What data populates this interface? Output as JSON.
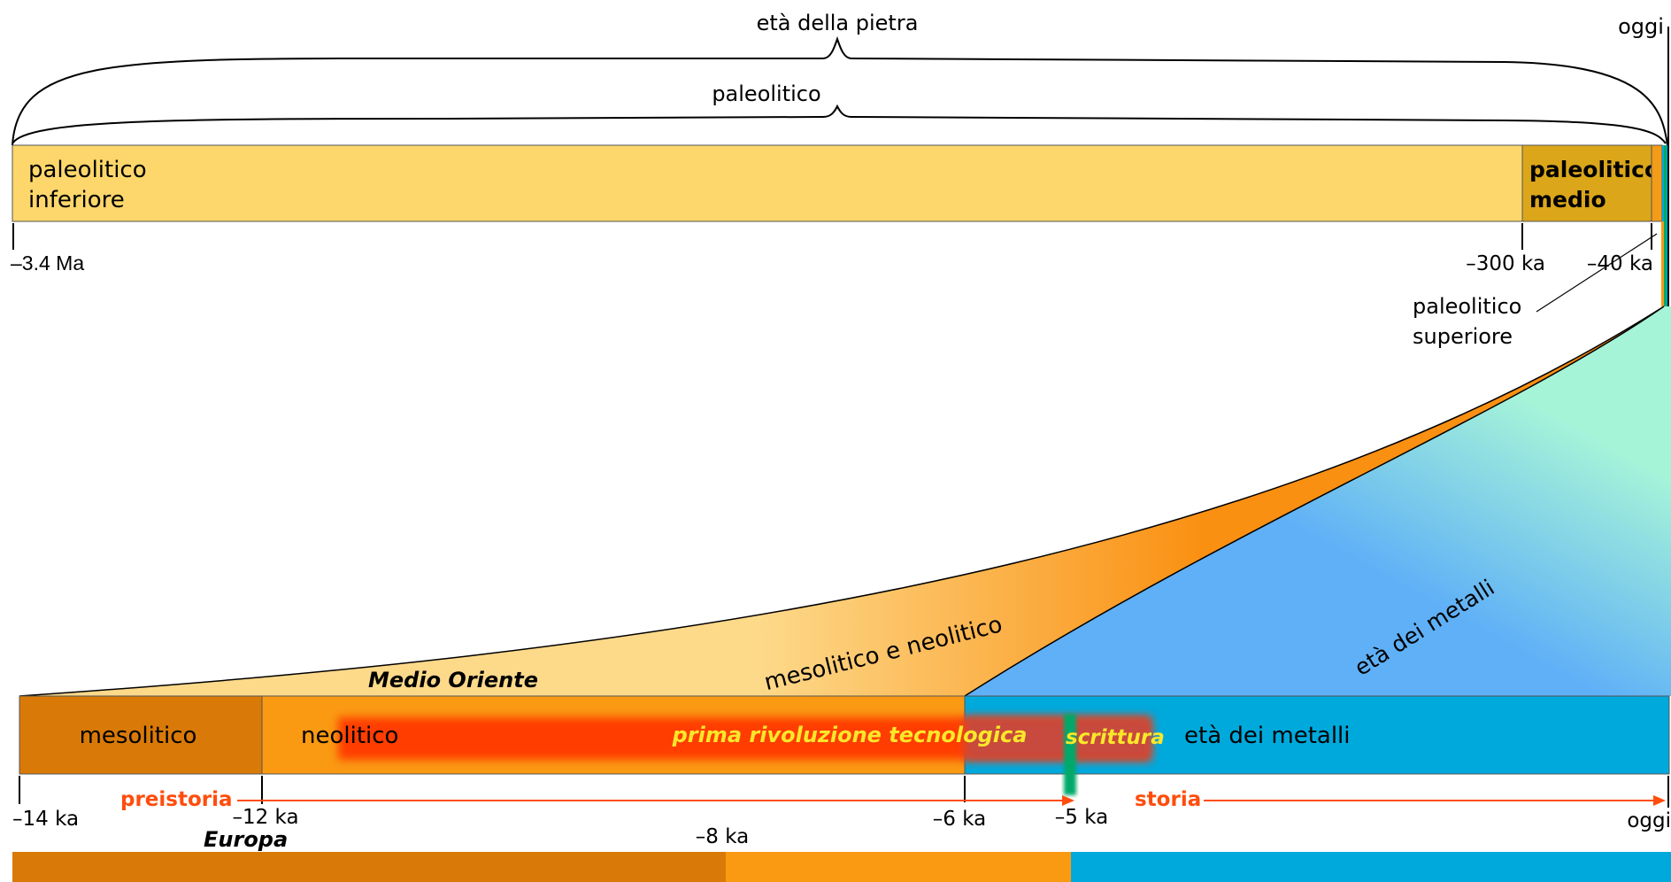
{
  "colors": {
    "paleo_inferiore": "#fdd76b",
    "paleo_medio": "#dba61a",
    "paleo_superiore": "#f39c1a",
    "mesolitico": "#d97a08",
    "neolitico": "#fa9a12",
    "metalli": "#00a9dc",
    "rivoluzione": "#ff3d00",
    "rivoluzione_text": "#f9e82a",
    "scrittura": "#00a86b",
    "arrow": "#ff4d0d",
    "funnel_light": "#fdd98a",
    "funnel_orange": "#fa9012",
    "funnel_blue": "#5fb0f7",
    "funnel_green": "#a6f4d8"
  },
  "top": {
    "brace_stone_age": "età della pietra",
    "brace_paleolithic": "paleolitico",
    "oggi": "oggi",
    "segment_inferiore_line1": "paleolitico",
    "segment_inferiore_line2": "inferiore",
    "segment_medio_line1": "paleolitico",
    "segment_medio_line2": "medio",
    "superiore_line1": "paleolitico",
    "superiore_line2": "superiore",
    "tick_start": "–3.4 Ma",
    "tick_300": "–300 ka",
    "tick_40": "–40 ka"
  },
  "funnel": {
    "label_meso_neo": "mesolitico e neolitico",
    "label_metalli": "età dei metalli"
  },
  "bottom": {
    "region_top": "Medio Oriente",
    "segment_mesolitico": "mesolitico",
    "segment_neolitico": "neolitico",
    "segment_metalli": "età dei metalli",
    "rivoluzione": "prima rivoluzione tecnologica",
    "scrittura": "scrittura",
    "preistoria": "preistoria",
    "storia": "storia",
    "tick_14": "–14 ka",
    "tick_12": "–12 ka",
    "tick_6": "–6 ka",
    "tick_5": "–5 ka",
    "tick_8": "–8 ka",
    "tick_oggi": "oggi",
    "region_bottom": "Europa"
  }
}
